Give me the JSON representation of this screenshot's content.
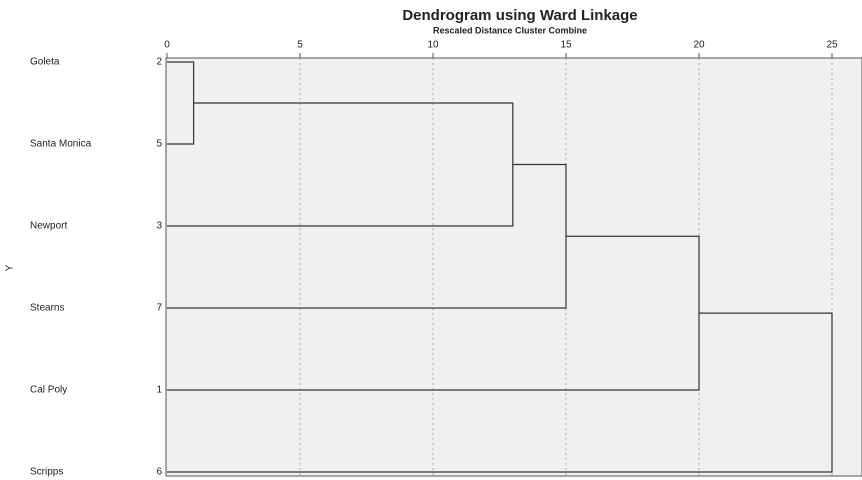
{
  "chart_data": {
    "type": "dendrogram",
    "title": "Dendrogram using Ward Linkage",
    "subtitle": "Rescaled Distance Cluster Combine",
    "y_label": "Y",
    "leaves": [
      {
        "name": "Goleta",
        "number": 2
      },
      {
        "name": "Santa Monica",
        "number": 5
      },
      {
        "name": "Newport",
        "number": 3
      },
      {
        "name": "Stearns",
        "number": 7
      },
      {
        "name": "Cal Poly",
        "number": 1
      },
      {
        "name": "Scripps",
        "number": 6
      }
    ],
    "merges": [
      {
        "join": [
          0,
          1
        ],
        "distance": 1
      },
      {
        "join": [
          6,
          2
        ],
        "distance": 13
      },
      {
        "join": [
          7,
          3
        ],
        "distance": 15
      },
      {
        "join": [
          8,
          4
        ],
        "distance": 20
      },
      {
        "join": [
          9,
          5
        ],
        "distance": 25
      }
    ],
    "xlim": [
      0,
      26
    ],
    "xticks": [
      0,
      5,
      10,
      15,
      20,
      25
    ],
    "grid": true,
    "color": "#333333"
  }
}
